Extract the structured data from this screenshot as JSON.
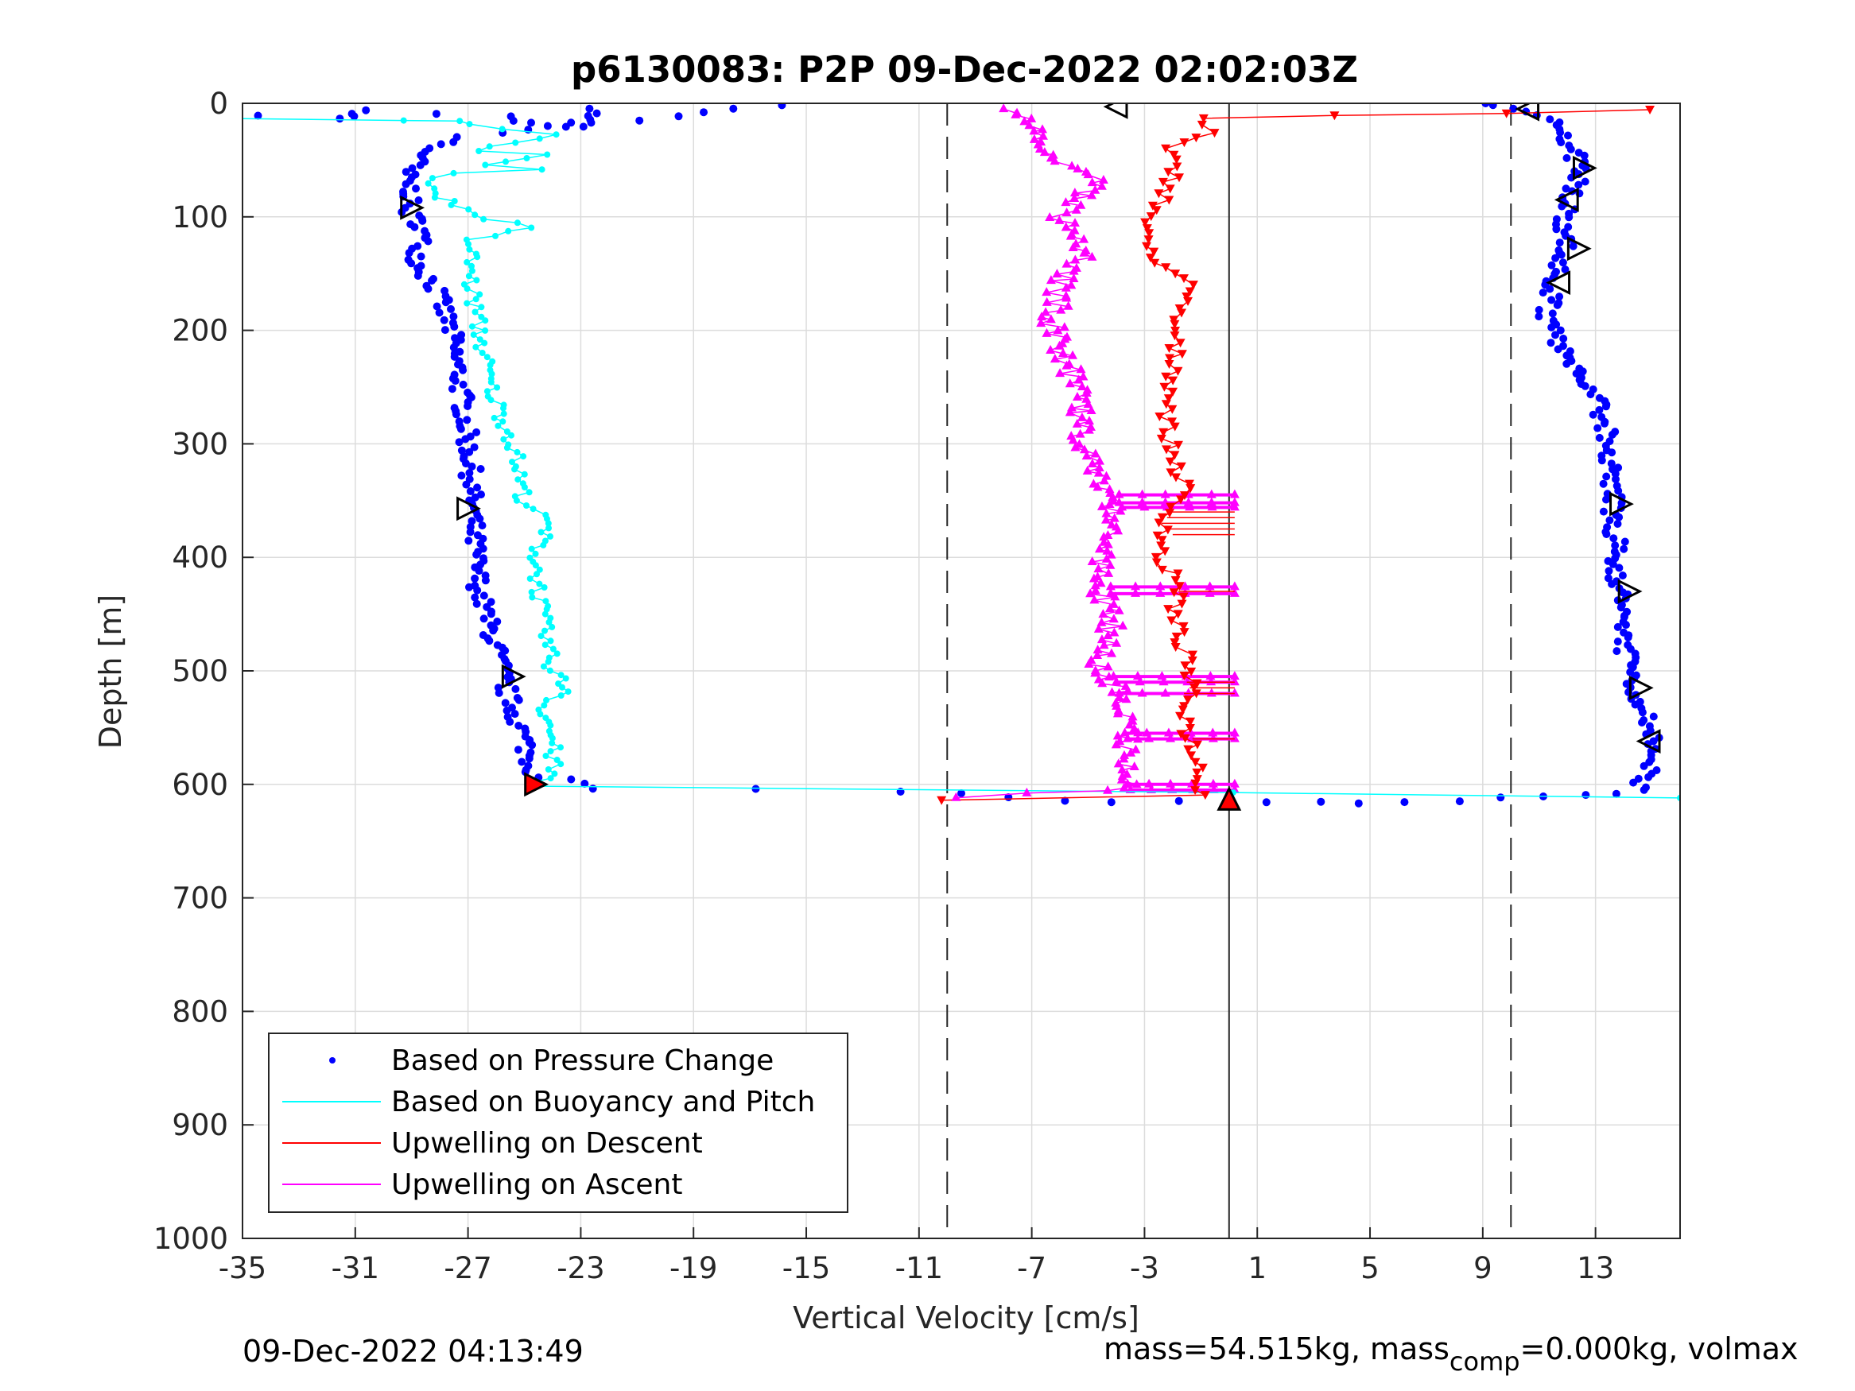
{
  "chart_data": {
    "type": "scatter",
    "title": "p6130083: P2P 09-Dec-2022 02:02:03Z",
    "xlabel": "Vertical Velocity [cm/s]",
    "ylabel": "Depth [m]",
    "xlim": [
      -35,
      16
    ],
    "ylim": [
      1000,
      0
    ],
    "y_reversed": true,
    "grid": true,
    "x_ticks": [
      -35,
      -31,
      -27,
      -23,
      -19,
      -15,
      -11,
      -7,
      -3,
      1,
      5,
      9,
      13
    ],
    "x_tick_labels": [
      "-35",
      "-31",
      "-27",
      "-23",
      "-19",
      "-15",
      "-11",
      "-7",
      "-3",
      "1",
      "5",
      "9",
      "13"
    ],
    "y_ticks": [
      0,
      100,
      200,
      300,
      400,
      500,
      600,
      700,
      800,
      900,
      1000
    ],
    "y_tick_labels": [
      "0",
      "100",
      "200",
      "300",
      "400",
      "500",
      "600",
      "700",
      "800",
      "900",
      "1000"
    ],
    "reference_lines": [
      {
        "style": "dashed",
        "x": -10
      },
      {
        "style": "dashed",
        "x": 10
      },
      {
        "style": "solid",
        "x": 0
      }
    ],
    "legend": {
      "location": "bottom-left",
      "entries": [
        {
          "label": "Based on Pressure Change",
          "color": "#0000ff",
          "marker": "dot"
        },
        {
          "label": "Based on Buoyancy and Pitch",
          "color": "#00ffff",
          "marker": "line"
        },
        {
          "label": "Upwelling on Descent",
          "color": "#ff0000",
          "marker": "line"
        },
        {
          "label": "Upwelling on Ascent",
          "color": "#ff00ff",
          "marker": "line"
        }
      ]
    },
    "series": [
      {
        "name": "Based on Pressure Change",
        "color": "#0000ff",
        "marker": "dot",
        "points": [
          [
            -34.1,
            10
          ],
          [
            -31.4,
            14
          ],
          [
            -30.8,
            6
          ],
          [
            -25.7,
            12
          ],
          [
            -24.9,
            18
          ],
          [
            -24.3,
            20
          ],
          [
            -23.2,
            20
          ],
          [
            -22.6,
            5
          ],
          [
            -16.1,
            2
          ],
          [
            -27.3,
            30
          ],
          [
            -28.3,
            40
          ],
          [
            -29.2,
            60
          ],
          [
            -29.0,
            80
          ],
          [
            -29.2,
            92
          ],
          [
            -28.6,
            110
          ],
          [
            -28.8,
            140
          ],
          [
            -28.2,
            160
          ],
          [
            -27.6,
            200
          ],
          [
            -27.2,
            260
          ],
          [
            -26.9,
            320
          ],
          [
            -26.8,
            380
          ],
          [
            -26.6,
            430
          ],
          [
            -26.0,
            480
          ],
          [
            -25.6,
            520
          ],
          [
            -25.0,
            560
          ],
          [
            -24.7,
            590
          ],
          [
            -22.5,
            603
          ],
          [
            -17.0,
            605
          ],
          [
            -12.0,
            607
          ],
          [
            -9.6,
            608
          ],
          [
            -7.5,
            612
          ],
          [
            -6.0,
            614
          ],
          [
            -4.0,
            615
          ],
          [
            -2.0,
            615
          ],
          [
            0.0,
            615
          ],
          [
            1.5,
            615
          ],
          [
            3.0,
            615
          ],
          [
            4.6,
            616
          ],
          [
            6.0,
            615
          ],
          [
            8.0,
            614
          ],
          [
            9.5,
            612
          ],
          [
            11.0,
            611
          ],
          [
            12.4,
            610
          ],
          [
            13.5,
            608
          ],
          [
            14.5,
            605
          ],
          [
            14.9,
            590
          ],
          [
            15.0,
            565
          ],
          [
            14.8,
            540
          ],
          [
            14.4,
            515
          ],
          [
            14.0,
            480
          ],
          [
            13.8,
            430
          ],
          [
            13.7,
            380
          ],
          [
            13.6,
            350
          ],
          [
            13.5,
            320
          ],
          [
            13.3,
            280
          ],
          [
            12.9,
            250
          ],
          [
            12.2,
            230
          ],
          [
            11.6,
            210
          ],
          [
            11.3,
            185
          ],
          [
            11.5,
            160
          ],
          [
            11.8,
            140
          ],
          [
            12.0,
            120
          ],
          [
            11.9,
            100
          ],
          [
            12.1,
            80
          ],
          [
            12.5,
            60
          ],
          [
            12.2,
            40
          ],
          [
            11.9,
            20
          ],
          [
            10.8,
            10
          ],
          [
            9.8,
            5
          ],
          [
            9.1,
            0
          ]
        ]
      },
      {
        "name": "Based on Buoyancy and Pitch",
        "color": "#00ffff",
        "marker": "line",
        "points": [
          [
            -35.0,
            14
          ],
          [
            -29.0,
            15
          ],
          [
            -27.4,
            16
          ],
          [
            -25.9,
            22
          ],
          [
            -24.1,
            27
          ],
          [
            -26.6,
            42
          ],
          [
            -24.2,
            45
          ],
          [
            -26.6,
            55
          ],
          [
            -24.1,
            58
          ],
          [
            -27.8,
            62
          ],
          [
            -28.3,
            75
          ],
          [
            -27.5,
            90
          ],
          [
            -26.2,
            102
          ],
          [
            -25.5,
            106
          ],
          [
            -25.0,
            110
          ],
          [
            -26.9,
            120
          ],
          [
            -26.9,
            160
          ],
          [
            -26.6,
            200
          ],
          [
            -26.2,
            250
          ],
          [
            -25.4,
            300
          ],
          [
            -25.0,
            350
          ],
          [
            -24.2,
            370
          ],
          [
            -24.6,
            400
          ],
          [
            -24.4,
            450
          ],
          [
            -24.0,
            500
          ],
          [
            -23.4,
            518
          ],
          [
            -24.3,
            530
          ],
          [
            -24.0,
            560
          ],
          [
            -24.0,
            590
          ],
          [
            -24.8,
            602
          ],
          [
            0.0,
            607
          ],
          [
            16.0,
            612
          ]
        ]
      },
      {
        "name": "Upwelling on Descent",
        "color": "#ff0000",
        "marker": "triangle-down",
        "points": [
          [
            15.0,
            5
          ],
          [
            9.8,
            8
          ],
          [
            4.0,
            10
          ],
          [
            -1.0,
            13
          ],
          [
            -0.7,
            25
          ],
          [
            -2.3,
            40
          ],
          [
            -1.9,
            60
          ],
          [
            -2.2,
            80
          ],
          [
            -2.8,
            100
          ],
          [
            -3.1,
            120
          ],
          [
            -2.4,
            140
          ],
          [
            -1.5,
            160
          ],
          [
            -2.0,
            200
          ],
          [
            -1.9,
            230
          ],
          [
            -2.2,
            280
          ],
          [
            -2.1,
            300
          ],
          [
            -1.6,
            340
          ],
          [
            -2.1,
            360
          ],
          [
            -2.5,
            400
          ],
          [
            -1.7,
            430
          ],
          [
            -2.0,
            450
          ],
          [
            -1.4,
            500
          ],
          [
            -1.5,
            550
          ],
          [
            -1.0,
            590
          ],
          [
            -0.9,
            610
          ],
          [
            -10.2,
            614
          ]
        ]
      },
      {
        "name": "Upwelling on Ascent",
        "color": "#ff00ff",
        "marker": "triangle-up",
        "points": [
          [
            -9.8,
            612
          ],
          [
            -4.0,
            605
          ],
          [
            -3.5,
            600
          ],
          [
            -3.6,
            560
          ],
          [
            -3.9,
            520
          ],
          [
            -4.6,
            500
          ],
          [
            -4.2,
            460
          ],
          [
            -4.6,
            420
          ],
          [
            -4.3,
            380
          ],
          [
            -4.2,
            350
          ],
          [
            -5.2,
            300
          ],
          [
            -5.4,
            250
          ],
          [
            -6.3,
            200
          ],
          [
            -6.0,
            160
          ],
          [
            -5.1,
            130
          ],
          [
            -6.0,
            100
          ],
          [
            -4.6,
            70
          ],
          [
            -6.5,
            40
          ],
          [
            -7.0,
            20
          ],
          [
            -8.0,
            5
          ]
        ]
      }
    ],
    "horizontal_connectors": {
      "color": "#ff00ff",
      "x_end": 0.2,
      "segments": [
        [
          -3.9,
          345
        ],
        [
          -3.9,
          352
        ],
        [
          -3.8,
          356
        ],
        [
          -4.2,
          426
        ],
        [
          -4.2,
          432
        ],
        [
          -4.1,
          505
        ],
        [
          -4.0,
          510
        ],
        [
          -3.9,
          520
        ],
        [
          -3.7,
          555
        ],
        [
          -3.6,
          560
        ],
        [
          -3.6,
          600
        ],
        [
          -3.5,
          605
        ]
      ]
    },
    "descent_connectors": {
      "color": "#ff0000",
      "segments": [
        [
          -2.1,
          360
        ],
        [
          -2.2,
          365
        ],
        [
          -2.4,
          370
        ],
        [
          -2.2,
          375
        ],
        [
          -2.0,
          380
        ],
        [
          -1.8,
          430
        ],
        [
          -1.5,
          510
        ],
        [
          -1.4,
          515
        ],
        [
          -1.6,
          520
        ],
        [
          -1.3,
          560
        ]
      ]
    },
    "triangle_markers": [
      {
        "x": -29.0,
        "y": 92,
        "direction": "right"
      },
      {
        "x": -27.0,
        "y": 357,
        "direction": "right"
      },
      {
        "x": -25.4,
        "y": 505,
        "direction": "right"
      },
      {
        "x": -24.6,
        "y": 600,
        "direction": "right",
        "filled": true
      },
      {
        "x": -4.0,
        "y": 3,
        "direction": "left"
      },
      {
        "x": 10.6,
        "y": 5,
        "direction": "left"
      },
      {
        "x": 12.6,
        "y": 57,
        "direction": "right"
      },
      {
        "x": 12.0,
        "y": 85,
        "direction": "left"
      },
      {
        "x": 12.4,
        "y": 128,
        "direction": "right"
      },
      {
        "x": 11.7,
        "y": 158,
        "direction": "left"
      },
      {
        "x": 13.9,
        "y": 353,
        "direction": "right"
      },
      {
        "x": 14.2,
        "y": 430,
        "direction": "right"
      },
      {
        "x": 14.6,
        "y": 515,
        "direction": "right"
      },
      {
        "x": 14.9,
        "y": 562,
        "direction": "left"
      },
      {
        "x": 0.0,
        "y": 613,
        "direction": "up",
        "filled": true
      }
    ]
  },
  "footer": {
    "timestamp": "09-Dec-2022 04:13:49",
    "mass_text_1": "mass=54.515kg, mass",
    "mass_sub": "comp",
    "mass_text_2": "=0.000kg, volmax"
  }
}
